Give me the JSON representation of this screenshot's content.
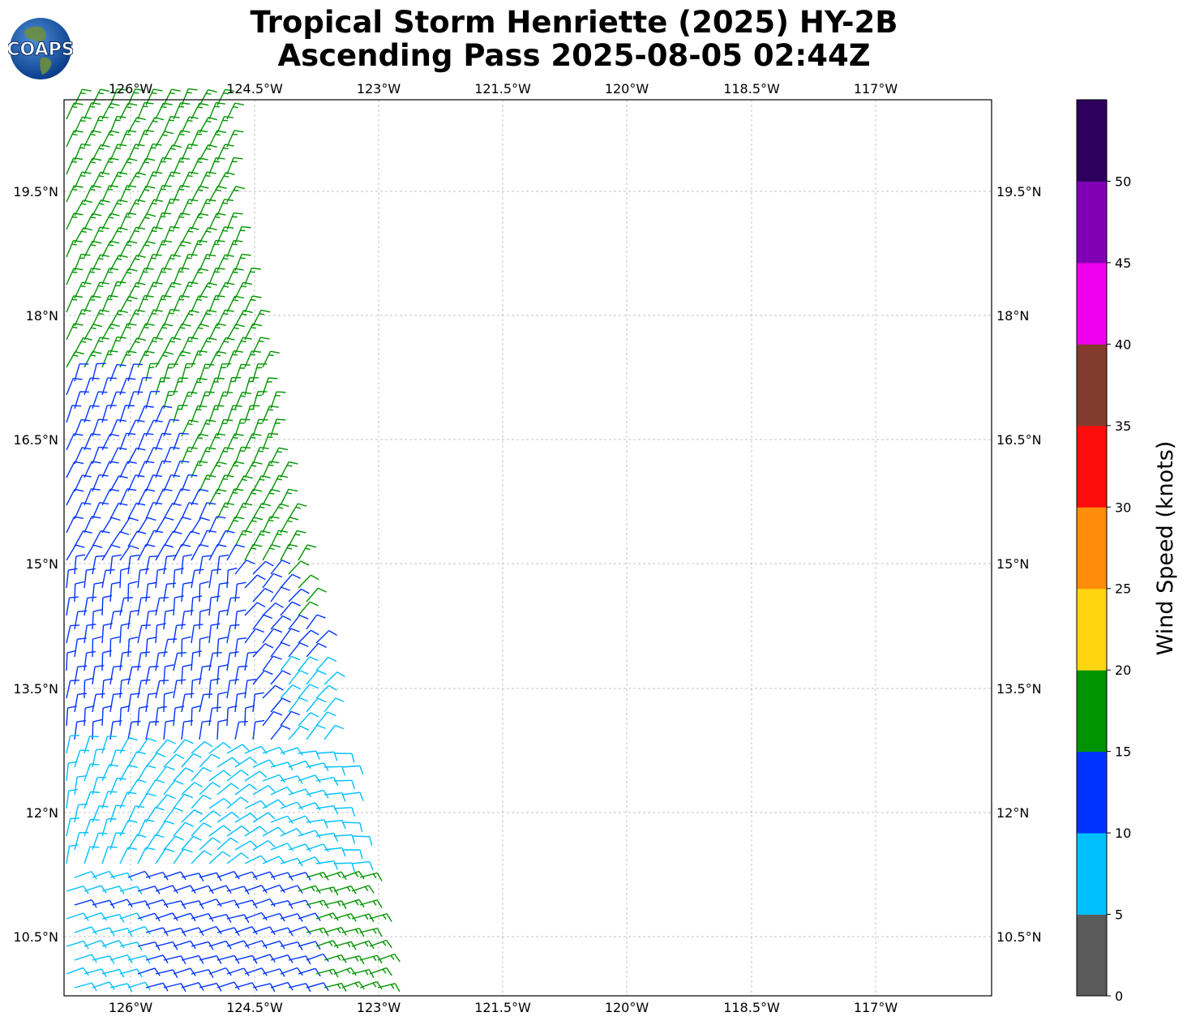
{
  "header": {
    "title_line1": "Tropical Storm Henriette (2025) HY-2B",
    "title_line2": "Ascending Pass 2025-08-05 02:44Z",
    "logo_text": "COAPS"
  },
  "map": {
    "lon_labels": [
      "126°W",
      "124.5°W",
      "123°W",
      "121.5°W",
      "120°W",
      "118.5°W",
      "117°W"
    ],
    "lat_labels": [
      "19.5°N",
      "18°N",
      "16.5°N",
      "15°N",
      "13.5°N",
      "12°N",
      "10.5°N"
    ],
    "gridlines": true
  },
  "colorbar": {
    "label": "Wind Speed (knots)",
    "ticks": [
      "0",
      "5",
      "10",
      "15",
      "20",
      "25",
      "30",
      "35",
      "40",
      "45",
      "50"
    ],
    "colors": [
      "#5a5a5a",
      "#00bfff",
      "#0033ff",
      "#009400",
      "#ffd511",
      "#ff8c0a",
      "#ff0d0d",
      "#823c2d",
      "#ee00ee",
      "#8000b5",
      "#2d005e"
    ]
  },
  "wind_vectors": {
    "units": "knots",
    "color_key": {
      "5-10": "#00bfff",
      "10-15": "#0033ff",
      "15-20": "#009400"
    }
  }
}
